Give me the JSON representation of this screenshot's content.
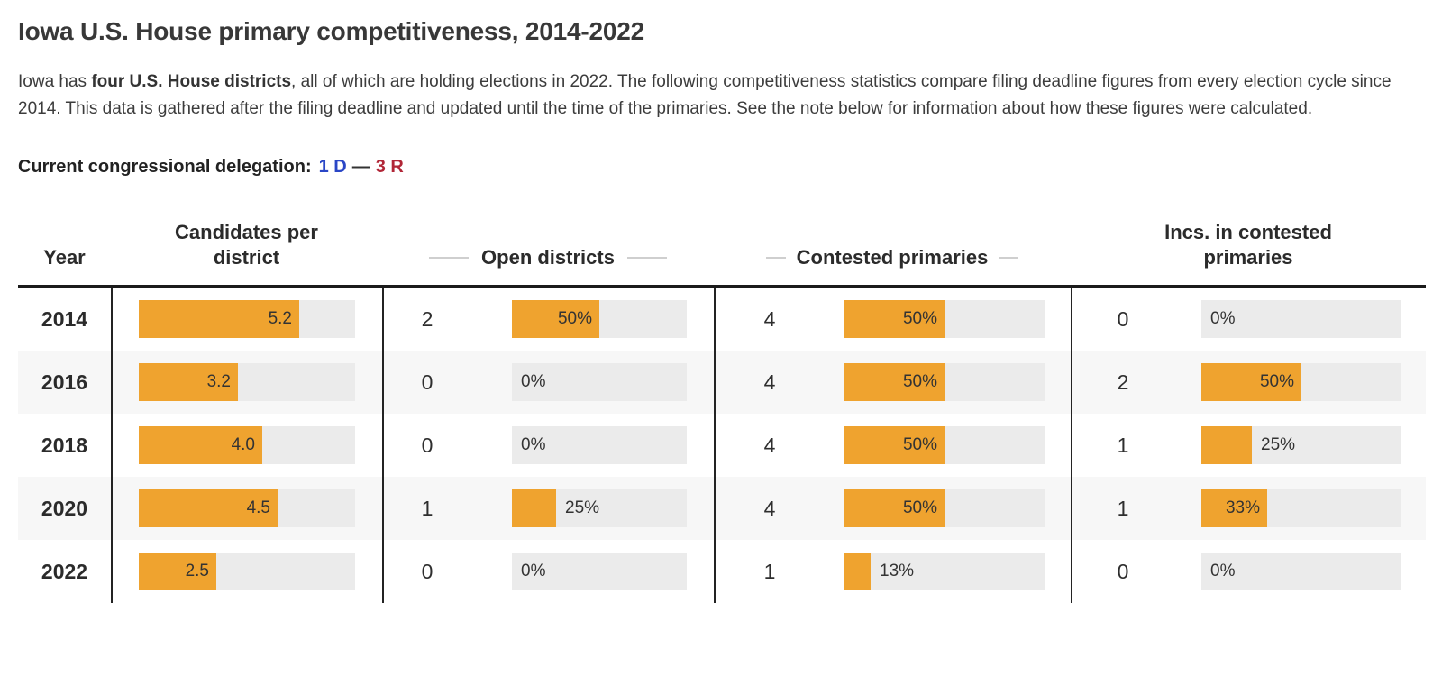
{
  "page": {
    "title": "Iowa U.S. House primary competitiveness, 2014-2022",
    "intro_pre": "Iowa has ",
    "intro_bold": "four U.S. House districts",
    "intro_post": ", all of which are holding elections in 2022. The following competitiveness statistics compare filing deadline figures from every election cycle since 2014. This data is gathered after the filing deadline and updated until the time of the primaries. See the note below for information about how these figures were calculated.",
    "delegation_label": "Current congressional delegation:",
    "delegation_dem": "1 D",
    "delegation_dash": "—",
    "delegation_rep": "3 R"
  },
  "colors": {
    "bar": "#efa32f",
    "track": "#ebebeb",
    "stripe": "#f7f7f7",
    "dem_blue": "#2a46c6",
    "rep_red": "#b12637"
  },
  "table": {
    "candidates_scale_max": 7,
    "headers": {
      "year": "Year",
      "candidates": "Candidates per district",
      "open": "Open districts",
      "contested": "Contested primaries",
      "incs": "Incs. in contested primaries"
    },
    "rows": [
      {
        "year": "2014",
        "candidates": {
          "value": 5.2,
          "label": "5.2"
        },
        "open": {
          "count": "2",
          "pct": 50,
          "label": "50%"
        },
        "contested": {
          "count": "4",
          "pct": 50,
          "label": "50%"
        },
        "incs": {
          "count": "0",
          "pct": 0,
          "label": "0%"
        }
      },
      {
        "year": "2016",
        "candidates": {
          "value": 3.2,
          "label": "3.2"
        },
        "open": {
          "count": "0",
          "pct": 0,
          "label": "0%"
        },
        "contested": {
          "count": "4",
          "pct": 50,
          "label": "50%"
        },
        "incs": {
          "count": "2",
          "pct": 50,
          "label": "50%"
        }
      },
      {
        "year": "2018",
        "candidates": {
          "value": 4.0,
          "label": "4.0"
        },
        "open": {
          "count": "0",
          "pct": 0,
          "label": "0%"
        },
        "contested": {
          "count": "4",
          "pct": 50,
          "label": "50%"
        },
        "incs": {
          "count": "1",
          "pct": 25,
          "label": "25%"
        }
      },
      {
        "year": "2020",
        "candidates": {
          "value": 4.5,
          "label": "4.5"
        },
        "open": {
          "count": "1",
          "pct": 25,
          "label": "25%"
        },
        "contested": {
          "count": "4",
          "pct": 50,
          "label": "50%"
        },
        "incs": {
          "count": "1",
          "pct": 33,
          "label": "33%"
        }
      },
      {
        "year": "2022",
        "candidates": {
          "value": 2.5,
          "label": "2.5"
        },
        "open": {
          "count": "0",
          "pct": 0,
          "label": "0%"
        },
        "contested": {
          "count": "1",
          "pct": 13,
          "label": "13%"
        },
        "incs": {
          "count": "0",
          "pct": 0,
          "label": "0%"
        }
      }
    ]
  },
  "chart_data": {
    "type": "table",
    "title": "Iowa U.S. House primary competitiveness, 2014-2022",
    "categories": [
      "2014",
      "2016",
      "2018",
      "2020",
      "2022"
    ],
    "series": [
      {
        "name": "Candidates per district",
        "type": "bar",
        "values": [
          5.2,
          3.2,
          4.0,
          4.5,
          2.5
        ],
        "scale_max": 7
      },
      {
        "name": "Open districts (count)",
        "values": [
          2,
          0,
          0,
          1,
          0
        ]
      },
      {
        "name": "Open districts (%)",
        "type": "bar",
        "values": [
          50,
          0,
          0,
          25,
          0
        ],
        "unit": "%",
        "scale_max": 100
      },
      {
        "name": "Contested primaries (count)",
        "values": [
          4,
          4,
          4,
          4,
          1
        ]
      },
      {
        "name": "Contested primaries (%)",
        "type": "bar",
        "values": [
          50,
          50,
          50,
          50,
          13
        ],
        "unit": "%",
        "scale_max": 100
      },
      {
        "name": "Incs. in contested primaries (count)",
        "values": [
          0,
          2,
          1,
          1,
          0
        ]
      },
      {
        "name": "Incs. in contested primaries (%)",
        "type": "bar",
        "values": [
          0,
          50,
          25,
          33,
          0
        ],
        "unit": "%",
        "scale_max": 100
      }
    ],
    "bar_color": "#efa32f",
    "track_color": "#ebebeb",
    "legend": "none",
    "grid": "off"
  }
}
